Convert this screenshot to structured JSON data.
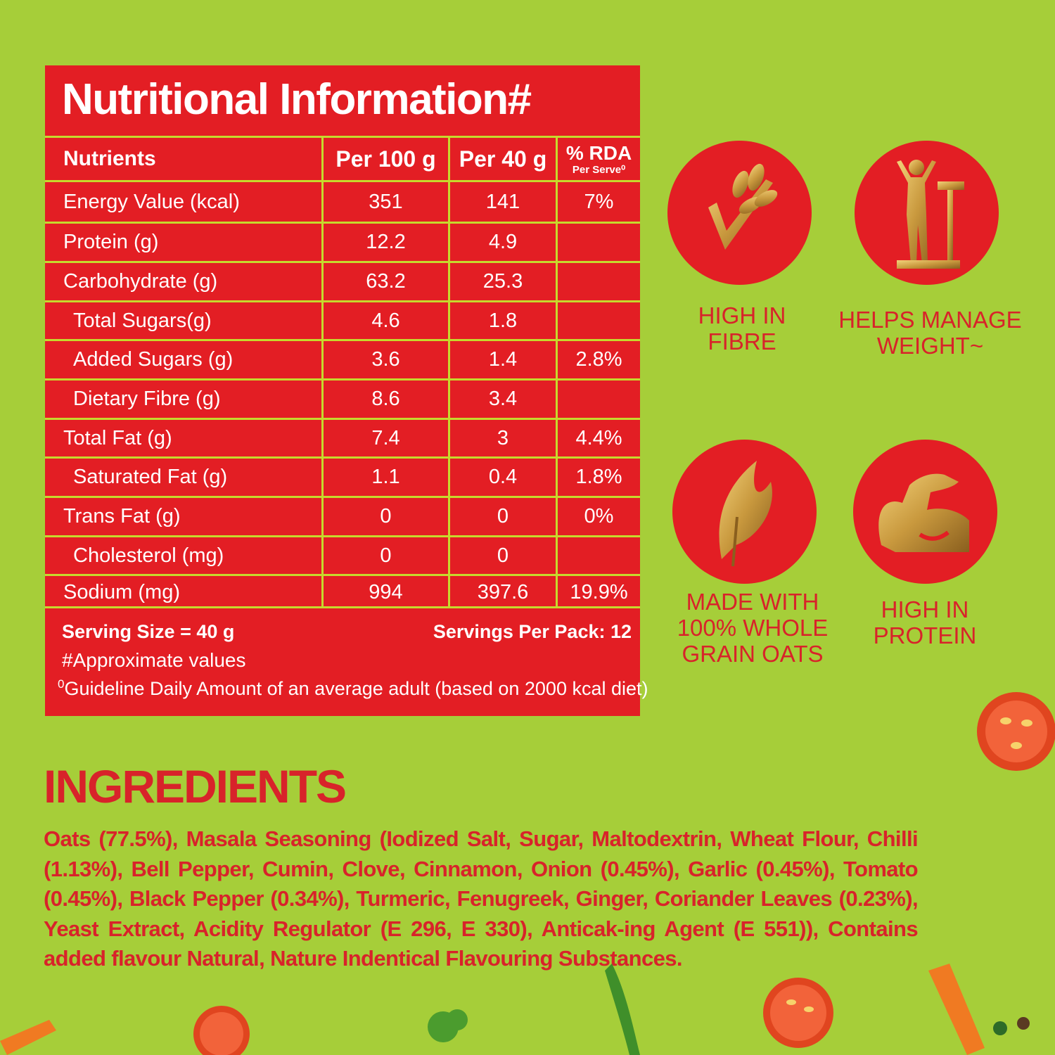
{
  "panel": {
    "title": "Nutritional Information#",
    "headers": {
      "nutrients": "Nutrients",
      "per100": "Per 100 g",
      "per40": "Per 40 g",
      "rda": "% RDA",
      "rda_sub": "Per Serve⁰"
    },
    "rows": [
      {
        "name": "Energy Value (kcal)",
        "per100": "351",
        "per40": "141",
        "rda": "7%"
      },
      {
        "name": "Protein (g)",
        "per100": "12.2",
        "per40": "4.9",
        "rda": ""
      },
      {
        "name": "Carbohydrate (g)",
        "per100": "63.2",
        "per40": "25.3",
        "rda": ""
      },
      {
        "name": "Total Sugars(g)",
        "per100": "4.6",
        "per40": "1.8",
        "rda": ""
      },
      {
        "name": "Added Sugars (g)",
        "per100": "3.6",
        "per40": "1.4",
        "rda": "2.8%"
      },
      {
        "name": "Dietary Fibre (g)",
        "per100": "8.6",
        "per40": "3.4",
        "rda": ""
      },
      {
        "name": "Total Fat (g)",
        "per100": "7.4",
        "per40": "3",
        "rda": "4.4%"
      },
      {
        "name": "Saturated Fat (g)",
        "per100": "1.1",
        "per40": "0.4",
        "rda": "1.8%"
      },
      {
        "name": "Trans Fat (g)",
        "per100": "0",
        "per40": "0",
        "rda": "0%"
      },
      {
        "name": "Cholesterol (mg)",
        "per100": "0",
        "per40": "0",
        "rda": ""
      },
      {
        "name": "Sodium (mg)",
        "per100": "994",
        "per40": "397.6",
        "rda": "19.9%"
      }
    ],
    "serving_size": "Serving Size = 40 g",
    "servings_per_pack": "Servings Per Pack: 12",
    "approx_note": "#Approximate values",
    "gda_mark": "0",
    "gda_note": "Guideline Daily Amount of an average adult (based on 2000 kcal diet)"
  },
  "badges": {
    "fibre": {
      "label_1": "HIGH IN",
      "label_2": "FIBRE",
      "icon": "wheat-check-icon"
    },
    "weight": {
      "label_1": "HELPS MANAGE",
      "label_2": "WEIGHT~",
      "icon": "weighing-scale-person-icon"
    },
    "oats": {
      "label_1": "MADE WITH",
      "label_2": "100% WHOLE",
      "label_3": "GRAIN OATS",
      "icon": "oat-grain-icon"
    },
    "protein": {
      "label_1": "HIGH IN",
      "label_2": "PROTEIN",
      "icon": "flexed-arm-icon"
    }
  },
  "ingredients": {
    "title": "INGREDIENTS",
    "text": "Oats (77.5%), Masala Seasoning (Iodized Salt, Sugar, Maltodextrin, Wheat Flour, Chilli (1.13%), Bell Pepper, Cumin, Clove, Cinnamon, Onion (0.45%), Garlic (0.45%), Tomato (0.45%), Black Pepper (0.34%), Turmeric, Fenugreek, Ginger, Coriander Leaves (0.23%), Yeast Extract, Acidity Regulator (E 296, E 330), Anticak-ing Agent (E 551)), Contains added flavour Natural, Nature Indentical Flavouring Substances."
  },
  "colors": {
    "background": "#a6ce39",
    "panel_red": "#e31e24",
    "divider": "#c6d92d",
    "gold": "#c9a24a"
  }
}
